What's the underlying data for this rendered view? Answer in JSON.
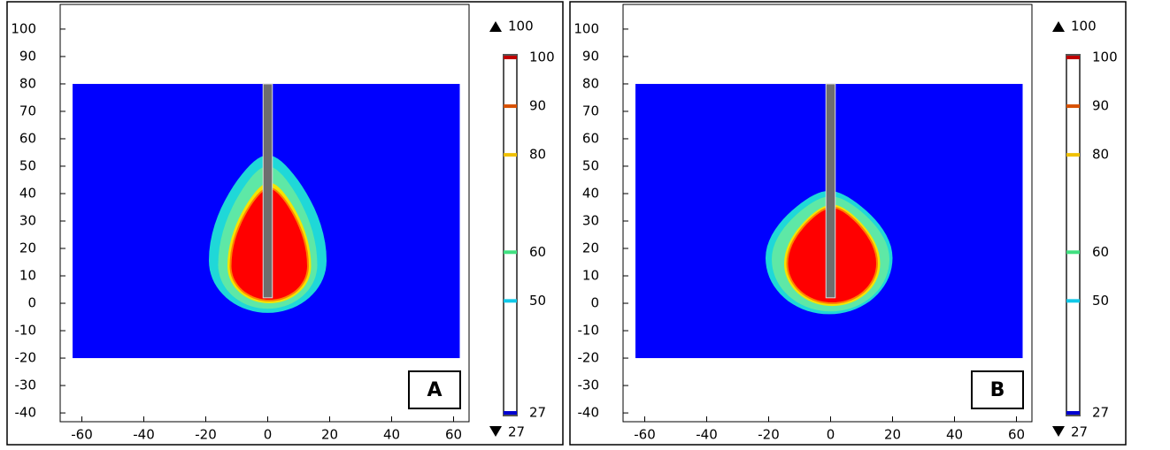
{
  "chart_data": [
    {
      "type": "contour",
      "label": "A",
      "xlim": [
        -67,
        65
      ],
      "ylim": [
        -43.2,
        109
      ],
      "xticks": [
        -60,
        -40,
        -20,
        0,
        20,
        40,
        60
      ],
      "yticks": [
        100,
        90,
        80,
        70,
        60,
        50,
        40,
        30,
        20,
        10,
        0,
        -10,
        -20,
        -30,
        -40
      ],
      "domain": {
        "x": [
          -63,
          62
        ],
        "y": [
          -20,
          80
        ],
        "color": "#0000ff"
      },
      "probe": {
        "x": [
          -1.5,
          1.5
        ],
        "y": [
          2,
          80
        ],
        "color": "#6e6e6e"
      },
      "contours": [
        {
          "level": 50,
          "color": "#1fd8d8",
          "x": [
            -19,
            19
          ],
          "y": [
            -3.5,
            54
          ]
        },
        {
          "level": 60,
          "color": "#5ee8a6",
          "x": [
            -16,
            16
          ],
          "y": [
            -2,
            50
          ]
        },
        {
          "level": 80,
          "color": "#f4e400",
          "x": [
            -13,
            14
          ],
          "y": [
            0,
            44
          ]
        },
        {
          "level": 90,
          "color": "#ff0000",
          "x": [
            -12,
            13
          ],
          "y": [
            1,
            42
          ]
        }
      ],
      "colorbar": {
        "clim": [
          27,
          100
        ],
        "ticks": [
          27,
          50,
          60,
          80,
          90,
          100
        ],
        "colors": [
          "#0000d0",
          "#10c8e8",
          "#40e080",
          "#f0c000",
          "#d85000",
          "#c00000"
        ],
        "max": 100,
        "min": 27
      }
    },
    {
      "type": "contour",
      "label": "B",
      "xlim": [
        -67,
        65
      ],
      "ylim": [
        -43.2,
        109
      ],
      "xticks": [
        -60,
        -40,
        -20,
        0,
        20,
        40,
        60
      ],
      "yticks": [
        100,
        90,
        80,
        70,
        60,
        50,
        40,
        30,
        20,
        10,
        0,
        -10,
        -20,
        -30,
        -40
      ],
      "domain": {
        "x": [
          -63,
          62
        ],
        "y": [
          -20,
          80
        ],
        "color": "#0000ff"
      },
      "probe": {
        "x": [
          -1.5,
          1.5
        ],
        "y": [
          2,
          80
        ],
        "color": "#6e6e6e"
      },
      "contours": [
        {
          "level": 50,
          "color": "#1fd8d8",
          "x": [
            -21,
            20
          ],
          "y": [
            -4,
            41
          ]
        },
        {
          "level": 60,
          "color": "#5ee8a6",
          "x": [
            -19,
            19
          ],
          "y": [
            -3,
            39
          ]
        },
        {
          "level": 80,
          "color": "#f4e400",
          "x": [
            -15,
            16
          ],
          "y": [
            -1,
            36
          ]
        },
        {
          "level": 90,
          "color": "#ff0000",
          "x": [
            -14,
            15
          ],
          "y": [
            0,
            35
          ]
        }
      ],
      "colorbar": {
        "clim": [
          27,
          100
        ],
        "ticks": [
          27,
          50,
          60,
          80,
          90,
          100
        ],
        "colors": [
          "#0000d0",
          "#10c8e8",
          "#40e080",
          "#f0c000",
          "#d85000",
          "#c00000"
        ],
        "max": 100,
        "min": 27
      }
    }
  ]
}
